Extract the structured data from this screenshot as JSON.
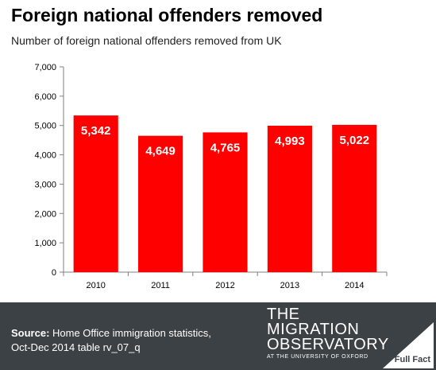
{
  "header": {
    "title": "Foreign national offenders removed",
    "subtitle": "Number of foreign national offenders removed from UK"
  },
  "chart_data": {
    "type": "bar",
    "title": "Foreign national offenders removed",
    "subtitle": "Number of foreign national offenders removed from UK",
    "categories": [
      "2010",
      "2011",
      "2012",
      "2013",
      "2014"
    ],
    "values": [
      5342,
      4649,
      4765,
      4993,
      5022
    ],
    "data_labels": [
      "5,342",
      "4,649",
      "4,765",
      "4,993",
      "5,022"
    ],
    "y_ticks": [
      0,
      1000,
      2000,
      3000,
      4000,
      5000,
      6000,
      7000
    ],
    "y_tick_labels": [
      "0",
      "1,000",
      "2,000",
      "3,000",
      "4,000",
      "5,000",
      "6,000",
      "7,000"
    ],
    "ylim": [
      0,
      7000
    ],
    "xlabel": "",
    "ylabel": "",
    "grid": false,
    "legend": "none",
    "bar_color": "#ff0000"
  },
  "footer": {
    "source_label": "Source:",
    "source_text": " Home Office immigration statistics,",
    "source_line2": "Oct-Dec 2014 table rv_07_q",
    "logo_line1": "THE",
    "logo_line2": "MIGRATION",
    "logo_line3": "OBSERVATORY",
    "logo_sub": "AT THE UNIVERSITY OF OXFORD",
    "fullfact_text": "Full Fact",
    "background_color": "#3c4145"
  }
}
